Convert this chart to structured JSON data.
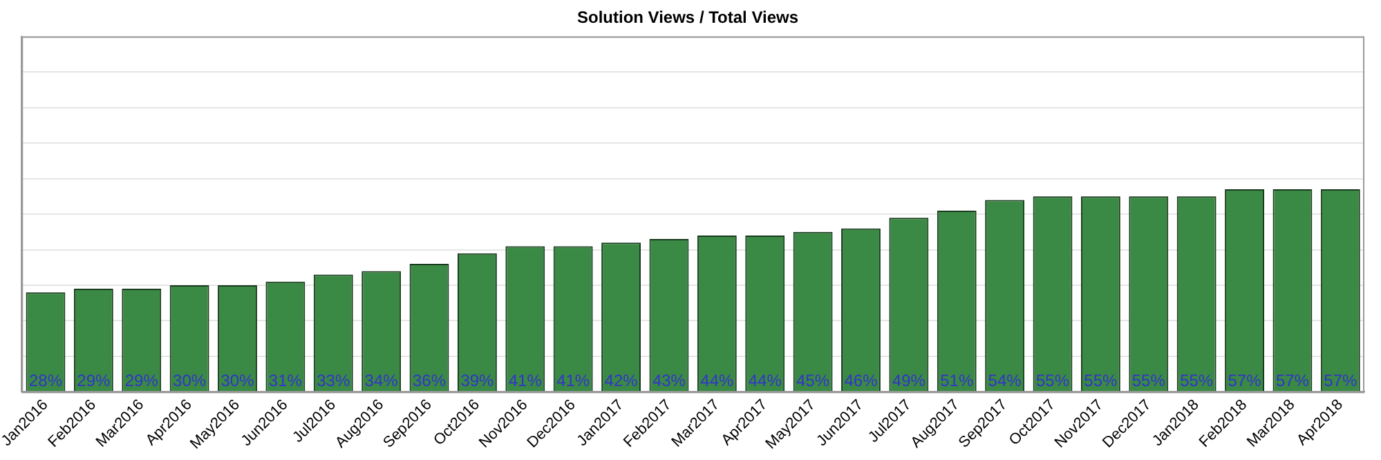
{
  "chart_data": {
    "type": "bar",
    "title": "Solution Views / Total Views",
    "categories": [
      "Jan2016",
      "Feb2016",
      "Mar2016",
      "Apr2016",
      "May2016",
      "Jun2016",
      "Jul2016",
      "Aug2016",
      "Sep2016",
      "Oct2016",
      "Nov2016",
      "Dec2016",
      "Jan2017",
      "Feb2017",
      "Mar2017",
      "Apr2017",
      "May2017",
      "Jun2017",
      "Jul2017",
      "Aug2017",
      "Sep2017",
      "Oct2017",
      "Nov2017",
      "Dec2017",
      "Jan2018",
      "Feb2018",
      "Mar2018",
      "Apr2018"
    ],
    "values": [
      28,
      29,
      29,
      30,
      30,
      31,
      33,
      34,
      36,
      39,
      41,
      41,
      42,
      43,
      44,
      44,
      45,
      46,
      49,
      51,
      54,
      55,
      55,
      55,
      55,
      57,
      57,
      57
    ],
    "value_labels": [
      "28%",
      "29%",
      "29%",
      "30%",
      "30%",
      "31%",
      "33%",
      "34%",
      "36%",
      "39%",
      "41%",
      "41%",
      "42%",
      "43%",
      "44%",
      "44%",
      "45%",
      "46%",
      "49%",
      "51%",
      "54%",
      "55%",
      "55%",
      "55%",
      "55%",
      "57%",
      "57%",
      "57%"
    ],
    "color": "#3a8a45",
    "ylim": [
      0,
      100
    ],
    "yticks": [
      {
        "value": 0,
        "label": null
      },
      {
        "value": 10,
        "label": null
      },
      {
        "value": 20,
        "label": null
      },
      {
        "value": 30,
        "label": null
      },
      {
        "value": 40,
        "label": null
      },
      {
        "value": 50,
        "label": null
      },
      {
        "value": 60,
        "label": null
      },
      {
        "value": 70,
        "label": null
      },
      {
        "value": 80,
        "label": null
      },
      {
        "value": 90,
        "label": null
      },
      {
        "value": 100,
        "label": null
      }
    ],
    "grid": "y",
    "tick_labels": "x",
    "legend": false
  }
}
